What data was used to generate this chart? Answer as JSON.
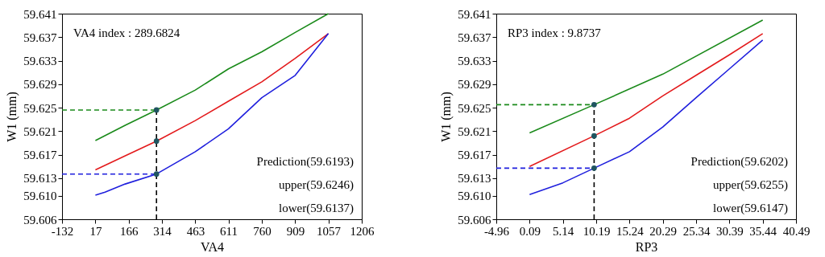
{
  "chart_data": [
    {
      "type": "line",
      "xlabel": "VA4",
      "ylabel": "W1 (mm)",
      "xlim": [
        -132,
        1206
      ],
      "ylim": [
        59.606,
        59.641
      ],
      "xticks": [
        -132,
        17,
        166,
        314,
        463,
        611,
        760,
        909,
        1057,
        1206
      ],
      "yticks": [
        59.606,
        {
          "value": 59.61,
          "label": "59.610"
        },
        59.613,
        59.617,
        59.621,
        59.625,
        59.629,
        59.633,
        59.637,
        59.641
      ],
      "grid": false,
      "line_style": "solid",
      "marker": "none",
      "annotations": [
        "VA4 index : 289.6824",
        "Prediction(59.6193)",
        "upper(59.6246)",
        "lower(59.6137)"
      ],
      "series": [
        {
          "color": "#1a8a1a",
          "x": [
            17,
            150,
            289.6824,
            463,
            611,
            760,
            909,
            1057
          ],
          "values": [
            59.6194,
            59.622,
            59.6246,
            59.628,
            59.6316,
            59.6345,
            59.6378,
            59.641
          ]
        },
        {
          "color": "#e31a1c",
          "x": [
            17,
            150,
            289.6824,
            463,
            611,
            760,
            909,
            1057
          ],
          "values": [
            59.6144,
            59.6168,
            59.6193,
            59.6228,
            59.6261,
            59.6294,
            59.6334,
            59.6376
          ]
        },
        {
          "color": "#1f1fdd",
          "x": [
            17,
            60,
            150,
            289.6824,
            463,
            611,
            760,
            909,
            1057
          ],
          "values": [
            59.6101,
            59.6106,
            59.612,
            59.6137,
            59.6175,
            59.6214,
            59.6267,
            59.6305,
            59.6376
          ]
        },
        {
          "type": "line",
          "line_style": "dashed",
          "color": "#1a8a1a",
          "x": [
            -132,
            289.6824
          ],
          "values": [
            59.6246,
            59.6246
          ]
        },
        {
          "type": "line",
          "line_style": "dashed",
          "color": "#1f1fdd",
          "x": [
            -132,
            289.6824
          ],
          "values": [
            59.6137,
            59.6137
          ]
        },
        {
          "type": "line",
          "line_style": "dashed",
          "color": "#000000",
          "x": [
            289.6824,
            289.6824
          ],
          "values": [
            59.606,
            59.6246
          ]
        },
        {
          "type": "scatter",
          "marker": "circle",
          "color": "#1f5560",
          "x": [
            289.6824,
            289.6824,
            289.6824
          ],
          "values": [
            59.6246,
            59.6193,
            59.6137
          ]
        }
      ]
    },
    {
      "type": "line",
      "xlabel": "RP3",
      "ylabel": "W1 (mm)",
      "xlim": [
        -4.96,
        40.49
      ],
      "ylim": [
        59.606,
        59.641
      ],
      "xticks": [
        -4.96,
        0.09,
        5.14,
        10.19,
        15.24,
        20.29,
        25.34,
        30.39,
        35.44,
        40.49
      ],
      "yticks": [
        59.606,
        {
          "value": 59.61,
          "label": "59.610"
        },
        59.613,
        59.617,
        59.621,
        59.625,
        59.629,
        59.633,
        59.637,
        59.641
      ],
      "grid": false,
      "line_style": "solid",
      "marker": "none",
      "annotations": [
        "RP3 index : 9.8737",
        "Prediction(59.6202)",
        "upper(59.6255)",
        "lower(59.6147)"
      ],
      "series": [
        {
          "color": "#1a8a1a",
          "x": [
            0.09,
            9.8737,
            20.29,
            35.44
          ],
          "values": [
            59.6207,
            59.6255,
            59.6307,
            59.6399
          ]
        },
        {
          "color": "#e31a1c",
          "x": [
            0.09,
            9.8737,
            15.24,
            20.29,
            25.34,
            30.39,
            35.44
          ],
          "values": [
            59.615,
            59.6202,
            59.6232,
            59.627,
            59.6305,
            59.634,
            59.6376
          ]
        },
        {
          "color": "#1f1fdd",
          "x": [
            0.09,
            5.14,
            9.8737,
            15.24,
            20.29,
            25.34,
            30.39,
            35.44
          ],
          "values": [
            59.6102,
            59.6122,
            59.6147,
            59.6175,
            59.6217,
            59.6267,
            59.6316,
            59.6365
          ]
        },
        {
          "type": "line",
          "line_style": "dashed",
          "color": "#1a8a1a",
          "x": [
            -4.96,
            9.8737
          ],
          "values": [
            59.6255,
            59.6255
          ]
        },
        {
          "type": "line",
          "line_style": "dashed",
          "color": "#1f1fdd",
          "x": [
            -4.96,
            9.8737
          ],
          "values": [
            59.6147,
            59.6147
          ]
        },
        {
          "type": "line",
          "line_style": "dashed",
          "color": "#000000",
          "x": [
            9.8737,
            9.8737
          ],
          "values": [
            59.606,
            59.6255
          ]
        },
        {
          "type": "scatter",
          "marker": "circle",
          "color": "#1f5560",
          "x": [
            9.8737,
            9.8737,
            9.8737
          ],
          "values": [
            59.6255,
            59.6202,
            59.6147
          ]
        }
      ]
    }
  ]
}
